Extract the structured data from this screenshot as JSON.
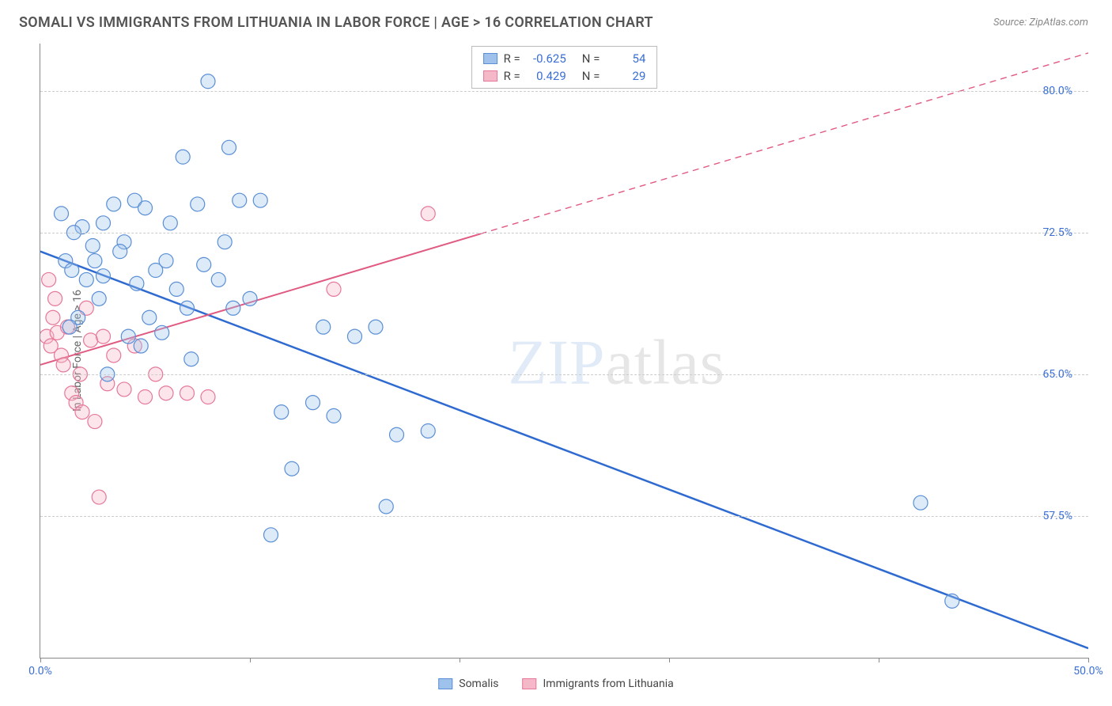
{
  "title": "SOMALI VS IMMIGRANTS FROM LITHUANIA IN LABOR FORCE | AGE > 16 CORRELATION CHART",
  "source": "Source: ZipAtlas.com",
  "watermark_bold": "ZIP",
  "watermark_thin": "atlas",
  "yaxis_title": "In Labor Force | Age > 16",
  "chart": {
    "type": "scatter-with-regression",
    "background_color": "#ffffff",
    "grid_color": "#cccccc",
    "axis_color": "#888888",
    "tick_label_color": "#3b6fd6",
    "xlim": [
      0,
      50
    ],
    "ylim": [
      50,
      82.5
    ],
    "xtick_positions": [
      0,
      10,
      20,
      30,
      40,
      50
    ],
    "xtick_labels": [
      "0.0%",
      "",
      "",
      "",
      "",
      "50.0%"
    ],
    "ytick_positions": [
      57.5,
      65.0,
      72.5,
      80.0
    ],
    "ytick_labels": [
      "57.5%",
      "65.0%",
      "72.5%",
      "80.0%"
    ],
    "point_radius": 9,
    "series": [
      {
        "name": "Somalis",
        "color_fill": "#9fc2ec",
        "color_stroke": "#5a8fd6",
        "line_color": "#2e6ad0",
        "line_width": 2.5,
        "R": "-0.625",
        "N": "54",
        "regression": {
          "x1": 0,
          "y1": 71.5,
          "x2": 50,
          "y2": 50.5,
          "dashed_from_x": null
        },
        "points": [
          [
            1.0,
            73.5
          ],
          [
            1.2,
            71.0
          ],
          [
            1.5,
            70.5
          ],
          [
            2.0,
            72.8
          ],
          [
            2.5,
            71.8
          ],
          [
            3.0,
            70.2
          ],
          [
            3.5,
            74.0
          ],
          [
            4.0,
            72.0
          ],
          [
            4.5,
            74.2
          ],
          [
            5.0,
            73.8
          ],
          [
            5.5,
            70.5
          ],
          [
            6.0,
            71.0
          ],
          [
            6.5,
            69.5
          ],
          [
            7.0,
            68.5
          ],
          [
            7.5,
            74.0
          ],
          [
            8.0,
            80.5
          ],
          [
            8.5,
            70.0
          ],
          [
            9.0,
            77.0
          ],
          [
            4.8,
            66.5
          ],
          [
            3.2,
            65.0
          ],
          [
            9.5,
            74.2
          ],
          [
            10.0,
            69.0
          ],
          [
            10.5,
            74.2
          ],
          [
            11.0,
            56.5
          ],
          [
            11.5,
            63.0
          ],
          [
            12.0,
            60.0
          ],
          [
            13.0,
            63.5
          ],
          [
            13.5,
            67.5
          ],
          [
            14.0,
            62.8
          ],
          [
            15.0,
            67.0
          ],
          [
            16.0,
            67.5
          ],
          [
            16.5,
            58.0
          ],
          [
            17.0,
            61.8
          ],
          [
            18.5,
            62.0
          ],
          [
            42.0,
            58.2
          ],
          [
            43.5,
            53.0
          ],
          [
            6.8,
            76.5
          ],
          [
            5.2,
            68.0
          ],
          [
            2.8,
            69.0
          ],
          [
            1.8,
            68.0
          ],
          [
            4.2,
            67.0
          ],
          [
            7.2,
            65.8
          ],
          [
            8.8,
            72.0
          ],
          [
            3.8,
            71.5
          ],
          [
            6.2,
            73.0
          ],
          [
            2.2,
            70.0
          ],
          [
            1.4,
            67.5
          ],
          [
            4.6,
            69.8
          ],
          [
            5.8,
            67.2
          ],
          [
            7.8,
            70.8
          ],
          [
            9.2,
            68.5
          ],
          [
            3.0,
            73.0
          ],
          [
            2.6,
            71.0
          ],
          [
            1.6,
            72.5
          ]
        ]
      },
      {
        "name": "Immigrants from Lithuania",
        "color_fill": "#f5b8c8",
        "color_stroke": "#e6789a",
        "line_color": "#e05a82",
        "line_width": 2,
        "R": "0.429",
        "N": "29",
        "regression": {
          "x1": 0,
          "y1": 65.5,
          "x2": 50,
          "y2": 82.0,
          "dashed_from_x": 21
        },
        "points": [
          [
            0.3,
            67.0
          ],
          [
            0.5,
            66.5
          ],
          [
            0.6,
            68.0
          ],
          [
            0.8,
            67.2
          ],
          [
            1.0,
            66.0
          ],
          [
            1.1,
            65.5
          ],
          [
            1.3,
            67.5
          ],
          [
            1.5,
            64.0
          ],
          [
            1.7,
            63.5
          ],
          [
            1.9,
            65.0
          ],
          [
            2.0,
            63.0
          ],
          [
            2.2,
            68.5
          ],
          [
            2.4,
            66.8
          ],
          [
            2.6,
            62.5
          ],
          [
            2.8,
            58.5
          ],
          [
            3.0,
            67.0
          ],
          [
            3.2,
            64.5
          ],
          [
            3.5,
            66.0
          ],
          [
            4.0,
            64.2
          ],
          [
            4.5,
            66.5
          ],
          [
            5.0,
            63.8
          ],
          [
            5.5,
            65.0
          ],
          [
            6.0,
            64.0
          ],
          [
            7.0,
            64.0
          ],
          [
            8.0,
            63.8
          ],
          [
            0.4,
            70.0
          ],
          [
            0.7,
            69.0
          ],
          [
            14.0,
            69.5
          ],
          [
            18.5,
            73.5
          ]
        ]
      }
    ]
  },
  "legend_top": {
    "R_label": "R =",
    "N_label": "N ="
  },
  "legend_bottom": {
    "items": [
      "Somalis",
      "Immigrants from Lithuania"
    ]
  }
}
